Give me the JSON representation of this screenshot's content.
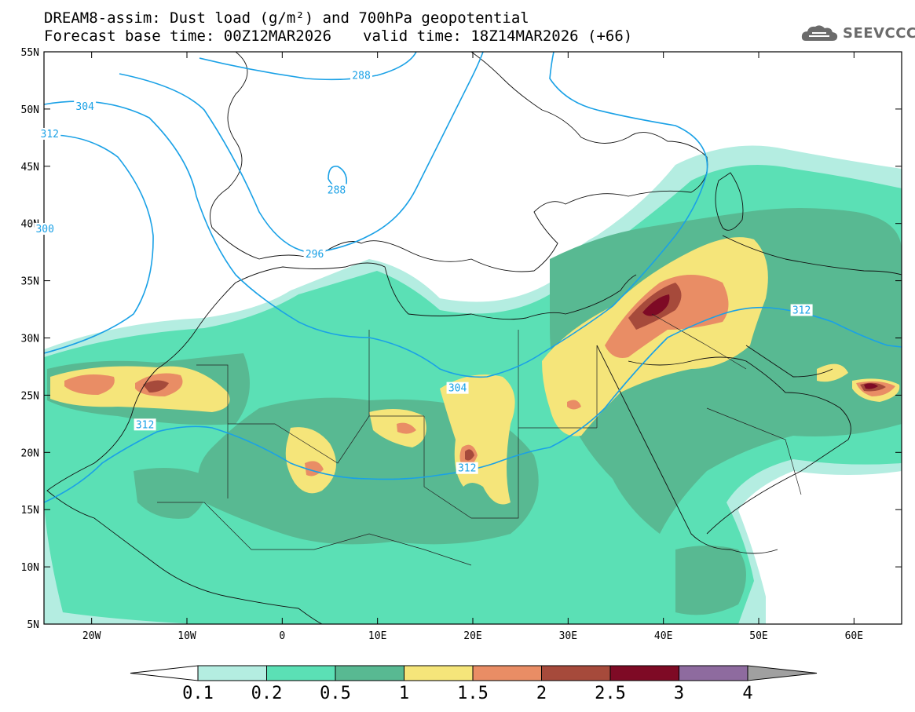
{
  "header": {
    "line1": "DREAM8-assim: Dust load (g/m²) and 700hPa geopotential",
    "base_time": "Forecast base time: 00Z12MAR2026",
    "valid_time": "valid time: 18Z14MAR2026 (+66)"
  },
  "logo": {
    "text": "SEEVCCC",
    "icon": "cloud-icon"
  },
  "map": {
    "lat_labels": [
      "55N",
      "50N",
      "45N",
      "40N",
      "35N",
      "30N",
      "25N",
      "20N",
      "15N",
      "10N",
      "5N"
    ],
    "lon_labels": [
      "20W",
      "10W",
      "0",
      "10E",
      "20E",
      "30E",
      "40E",
      "50E",
      "60E"
    ],
    "lon_range": [
      -25,
      65
    ],
    "lat_range": [
      5,
      55
    ],
    "contour_labels": [
      {
        "text": "288",
        "lon": 8.3,
        "lat": 52.9
      },
      {
        "text": "304",
        "lon": -20.7,
        "lat": 50.2
      },
      {
        "text": "312",
        "lon": -24.4,
        "lat": 47.8
      },
      {
        "text": "288",
        "lon": 5.7,
        "lat": 42.9
      },
      {
        "text": "300",
        "lon": -24.9,
        "lat": 39.5
      },
      {
        "text": "296",
        "lon": 3.4,
        "lat": 37.3
      },
      {
        "text": "312",
        "lon": 54.5,
        "lat": 32.4
      },
      {
        "text": "304",
        "lon": 18.4,
        "lat": 25.6
      },
      {
        "text": "312",
        "lon": -14.4,
        "lat": 22.4
      },
      {
        "text": "312",
        "lon": 19.4,
        "lat": 18.6
      }
    ]
  },
  "legend": {
    "labels": [
      "0.1",
      "0.2",
      "0.5",
      "1",
      "1.5",
      "2",
      "2.5",
      "3",
      "4"
    ],
    "colors": [
      "#b4ede1",
      "#5be0b5",
      "#58b992",
      "#f5e57a",
      "#e98d65",
      "#a64a3b",
      "#7e0a25",
      "#8e6b9f",
      "#a0a0a0"
    ],
    "unit": "g/m²"
  }
}
